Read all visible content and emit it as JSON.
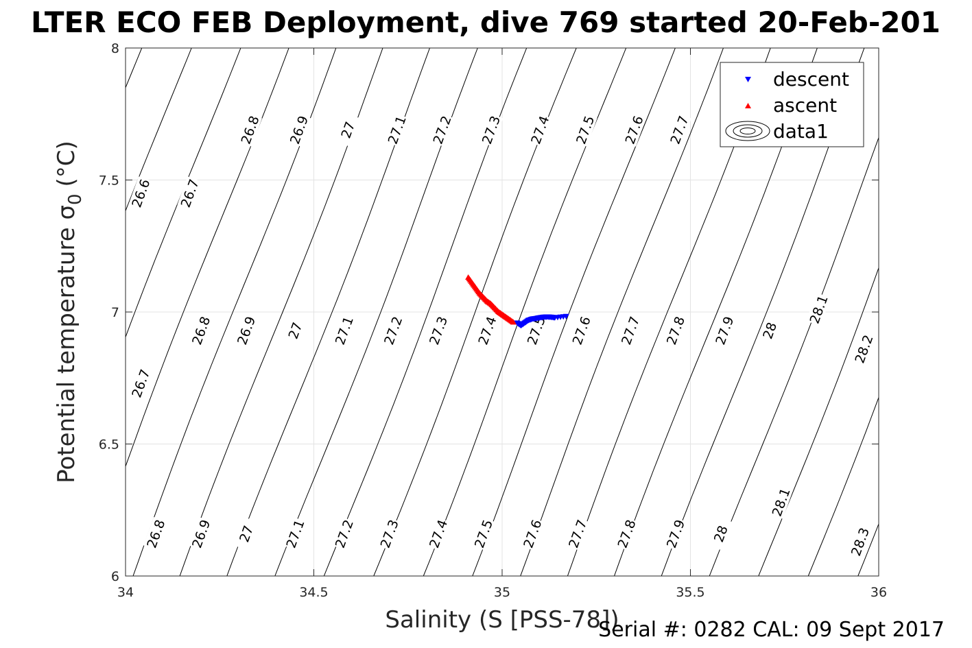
{
  "chart_data": {
    "type": "scatter",
    "title": "LTER ECO FEB Deployment, dive 769 started 20-Feb-201",
    "xlabel": "Salinity (S [PSS-78])",
    "ylabel_main": "Potential temperature σ",
    "ylabel_sub": "0",
    "ylabel_unit": "(°C)",
    "footnote": "Serial #: 0282  CAL: 09 Sept 2017",
    "xlim": [
      34,
      36
    ],
    "ylim": [
      6,
      8
    ],
    "xticks": [
      34,
      34.5,
      35,
      35.5,
      36
    ],
    "xtick_labels": [
      "34",
      "34.5",
      "35",
      "35.5",
      "36"
    ],
    "yticks": [
      6,
      6.5,
      7,
      7.5,
      8
    ],
    "ytick_labels": [
      "6",
      "6.5",
      "7",
      "7.5",
      "8"
    ],
    "grid": true,
    "legend_position": "top-right",
    "series": [
      {
        "name": "descent",
        "marker": "triangle-down",
        "color": "#0000ff",
        "x": [
          35.04,
          35.05,
          35.06,
          35.07,
          35.08,
          35.09,
          35.1,
          35.11,
          35.12,
          35.13,
          35.14,
          35.17
        ],
        "y": [
          6.96,
          6.95,
          6.96,
          6.97,
          6.975,
          6.977,
          6.98,
          6.982,
          6.983,
          6.982,
          6.98,
          6.985
        ]
      },
      {
        "name": "ascent",
        "marker": "triangle-up",
        "color": "#ff0000",
        "x": [
          34.91,
          34.92,
          34.93,
          34.94,
          34.95,
          34.96,
          34.97,
          34.98,
          34.99,
          35.0,
          35.01,
          35.02,
          35.03
        ],
        "y": [
          7.13,
          7.11,
          7.09,
          7.07,
          7.055,
          7.04,
          7.03,
          7.015,
          7.0,
          6.99,
          6.98,
          6.97,
          6.96
        ]
      },
      {
        "name": "data1",
        "marker": "contour",
        "color": "#000000"
      }
    ],
    "contour_levels": [
      26.6,
      26.7,
      26.8,
      26.9,
      27,
      27.1,
      27.2,
      27.3,
      27.4,
      27.5,
      27.6,
      27.7,
      27.8,
      27.9,
      28,
      28.1,
      28.2,
      28.3
    ],
    "contour_labels": [
      {
        "text": "26.6",
        "s": 34.04,
        "t": 7.45
      },
      {
        "text": "26.7",
        "s": 34.17,
        "t": 7.45
      },
      {
        "text": "26.8",
        "s": 34.33,
        "t": 7.69
      },
      {
        "text": "26.9",
        "s": 34.46,
        "t": 7.69
      },
      {
        "text": "27",
        "s": 34.59,
        "t": 7.69
      },
      {
        "text": "27.1",
        "s": 34.72,
        "t": 7.69
      },
      {
        "text": "27.2",
        "s": 34.84,
        "t": 7.69
      },
      {
        "text": "27.3",
        "s": 34.97,
        "t": 7.69
      },
      {
        "text": "27.4",
        "s": 35.1,
        "t": 7.69
      },
      {
        "text": "27.5",
        "s": 35.22,
        "t": 7.69
      },
      {
        "text": "27.6",
        "s": 35.35,
        "t": 7.69
      },
      {
        "text": "27.7",
        "s": 35.47,
        "t": 7.69
      },
      {
        "text": "26.8",
        "s": 34.2,
        "t": 6.93
      },
      {
        "text": "26.9",
        "s": 34.32,
        "t": 6.93
      },
      {
        "text": "27",
        "s": 34.45,
        "t": 6.93
      },
      {
        "text": "27.1",
        "s": 34.58,
        "t": 6.93
      },
      {
        "text": "27.2",
        "s": 34.71,
        "t": 6.93
      },
      {
        "text": "27.3",
        "s": 34.83,
        "t": 6.93
      },
      {
        "text": "27.4",
        "s": 34.96,
        "t": 6.93
      },
      {
        "text": "27.5",
        "s": 35.09,
        "t": 6.93
      },
      {
        "text": "27.6",
        "s": 35.21,
        "t": 6.93
      },
      {
        "text": "27.7",
        "s": 35.34,
        "t": 6.93
      },
      {
        "text": "27.8",
        "s": 35.46,
        "t": 6.93
      },
      {
        "text": "27.9",
        "s": 35.59,
        "t": 6.93
      },
      {
        "text": "28",
        "s": 35.71,
        "t": 6.93
      },
      {
        "text": "28.1",
        "s": 35.84,
        "t": 7.01
      },
      {
        "text": "28.2",
        "s": 35.96,
        "t": 6.86
      },
      {
        "text": "26.7",
        "s": 34.04,
        "t": 6.73
      },
      {
        "text": "26.8",
        "s": 34.08,
        "t": 6.16
      },
      {
        "text": "26.9",
        "s": 34.2,
        "t": 6.16
      },
      {
        "text": "27",
        "s": 34.32,
        "t": 6.16
      },
      {
        "text": "27.1",
        "s": 34.45,
        "t": 6.16
      },
      {
        "text": "27.2",
        "s": 34.58,
        "t": 6.16
      },
      {
        "text": "27.3",
        "s": 34.7,
        "t": 6.16
      },
      {
        "text": "27.4",
        "s": 34.83,
        "t": 6.16
      },
      {
        "text": "27.5",
        "s": 34.95,
        "t": 6.16
      },
      {
        "text": "27.6",
        "s": 35.08,
        "t": 6.16
      },
      {
        "text": "27.7",
        "s": 35.2,
        "t": 6.16
      },
      {
        "text": "27.8",
        "s": 35.33,
        "t": 6.16
      },
      {
        "text": "27.9",
        "s": 35.46,
        "t": 6.16
      },
      {
        "text": "28",
        "s": 35.58,
        "t": 6.16
      },
      {
        "text": "28.1",
        "s": 35.74,
        "t": 6.28
      },
      {
        "text": "28.3",
        "s": 35.95,
        "t": 6.13
      }
    ]
  }
}
